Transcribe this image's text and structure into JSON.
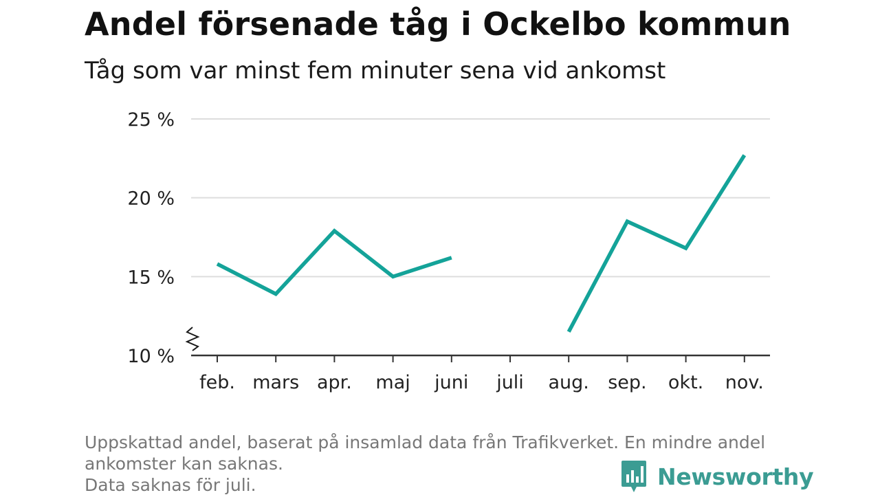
{
  "title": "Andel försenade tåg i Ockelbo kommun",
  "subtitle": "Tåg som var minst fem minuter sena vid ankomst",
  "footnote": {
    "line1": "Uppskattad andel, baserat på insamlad data från Trafikverket. En mindre andel",
    "line2": "ankomster kan saknas.",
    "line3": "Data saknas för juli."
  },
  "brand": {
    "name": "Newsworthy",
    "color": "#3b9c93"
  },
  "chart_data": {
    "type": "line",
    "categories": [
      "feb.",
      "mars",
      "apr.",
      "maj",
      "juni",
      "juli",
      "aug.",
      "sep.",
      "okt.",
      "nov."
    ],
    "series": [
      {
        "values": [
          15.8,
          13.9,
          17.9,
          15.0,
          16.2,
          null,
          11.5,
          18.5,
          16.8,
          22.7
        ],
        "color": "#14a399"
      }
    ],
    "yticks": [
      "10 %",
      "15 %",
      "20 %",
      "25 %"
    ],
    "ytick_values": [
      10,
      15,
      20,
      25
    ],
    "ylim": [
      10,
      25
    ],
    "axis_break": true,
    "grid": true,
    "xlabel": "",
    "ylabel": ""
  }
}
